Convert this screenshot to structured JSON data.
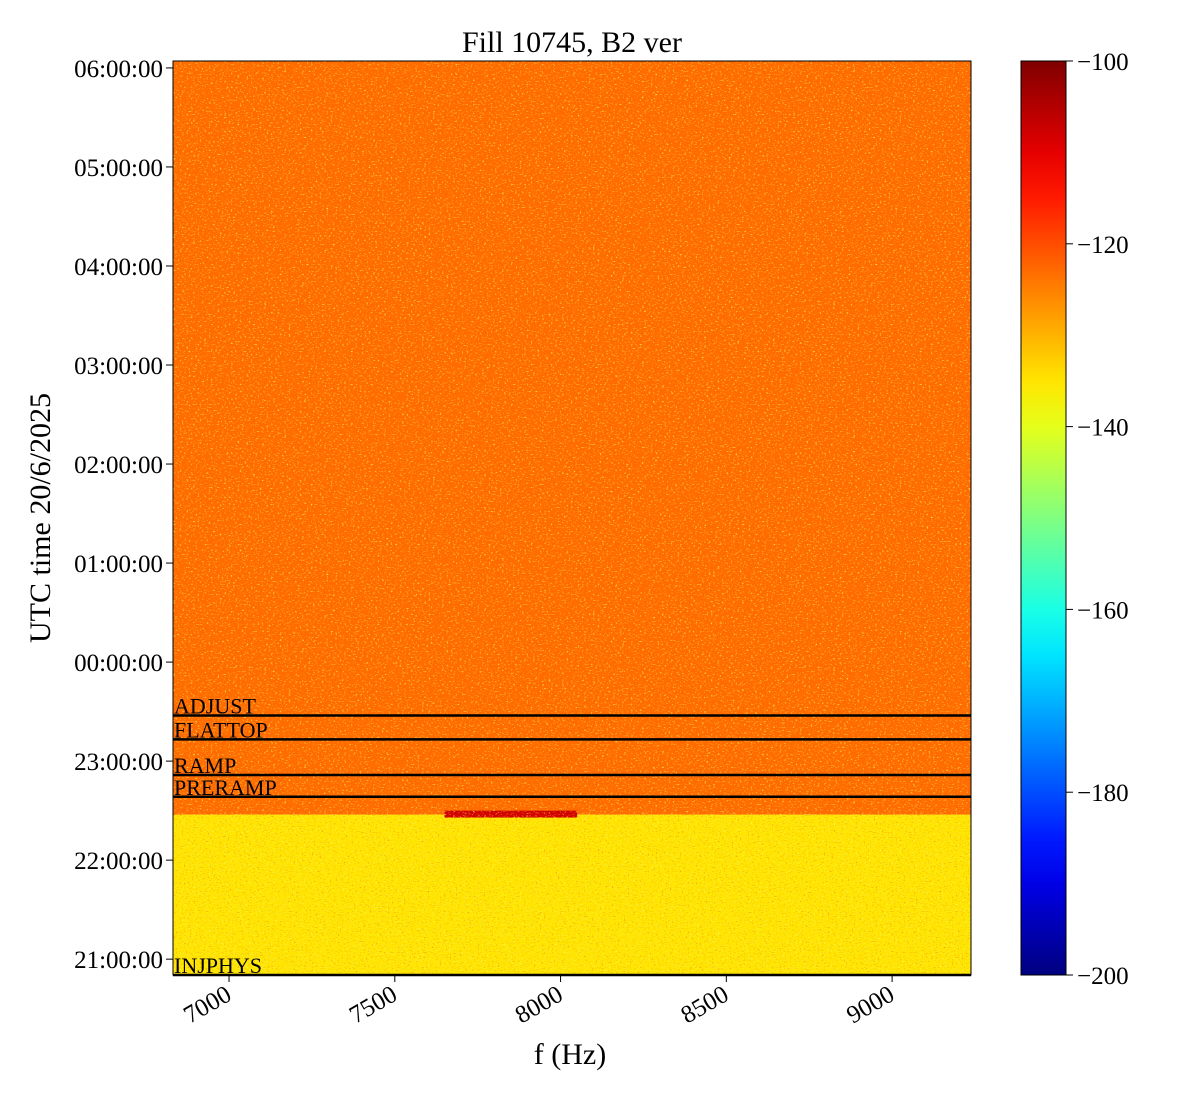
{
  "chart_data": {
    "type": "spectrogram",
    "title": "Fill 10745, B2 ver",
    "x_label": "f (Hz)",
    "y_label": "UTC time 20/6/2025",
    "xlim": [
      6831,
      9238
    ],
    "xticks": [
      7000,
      7500,
      8000,
      8500,
      9000
    ],
    "ylim": [
      20.84,
      30.07
    ],
    "yticks": [
      {
        "value": 21,
        "label": "21:00:00"
      },
      {
        "value": 22,
        "label": "22:00:00"
      },
      {
        "value": 23,
        "label": "23:00:00"
      },
      {
        "value": 24,
        "label": "00:00:00"
      },
      {
        "value": 25,
        "label": "01:00:00"
      },
      {
        "value": 26,
        "label": "02:00:00"
      },
      {
        "value": 27,
        "label": "03:00:00"
      },
      {
        "value": 28,
        "label": "04:00:00"
      },
      {
        "value": 29,
        "label": "05:00:00"
      },
      {
        "value": 30,
        "label": "06:00:00"
      }
    ],
    "colormap": "jet",
    "clim": [
      -200,
      -100
    ],
    "cticks": [
      {
        "value": -200,
        "label": "−200"
      },
      {
        "value": -180,
        "label": "−180"
      },
      {
        "value": -160,
        "label": "−160"
      },
      {
        "value": -140,
        "label": "−140"
      },
      {
        "value": -120,
        "label": "−120"
      },
      {
        "value": -100,
        "label": "−100"
      }
    ],
    "regions": [
      {
        "t": [
          20.84,
          22.46
        ],
        "f": [
          6831,
          9238
        ],
        "level": -135
      },
      {
        "t": [
          22.46,
          30.07
        ],
        "f": [
          6831,
          9238
        ],
        "level": -123
      },
      {
        "t": [
          22.43,
          22.5
        ],
        "f": [
          7650,
          8050
        ],
        "level": -108
      }
    ],
    "annotations": [
      {
        "label": "INJPHYS",
        "value": 20.84
      },
      {
        "label": "PRERAMP",
        "value": 22.64
      },
      {
        "label": "RAMP",
        "value": 22.86
      },
      {
        "label": "FLATTOP",
        "value": 23.22
      },
      {
        "label": "ADJUST",
        "value": 23.46
      }
    ]
  }
}
